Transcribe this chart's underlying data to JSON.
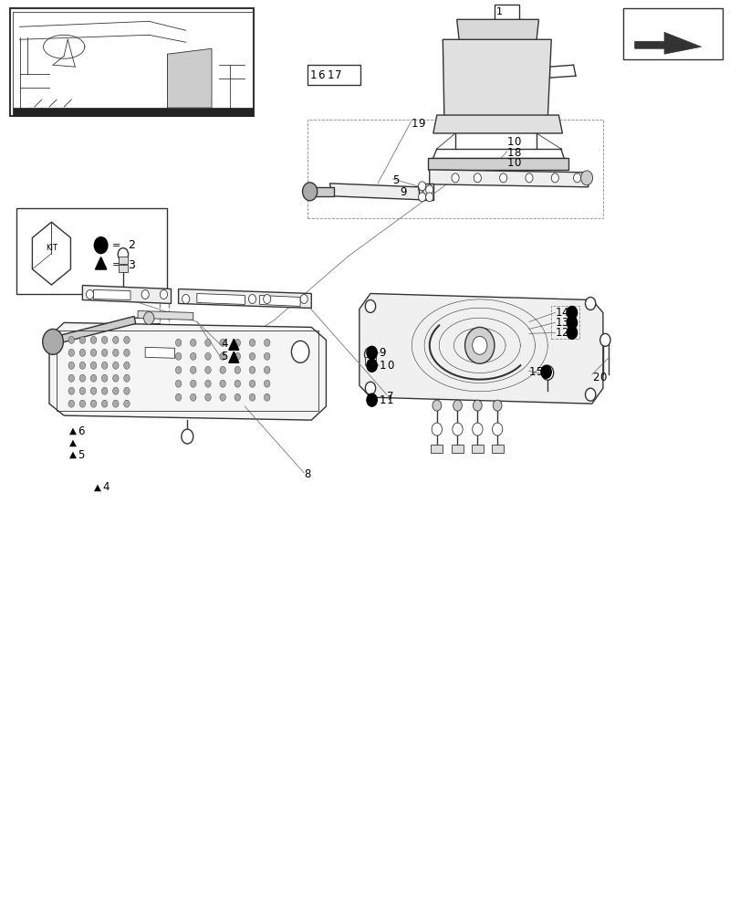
{
  "bg_color": "#ffffff",
  "line_color": "#333333",
  "figsize": [
    8.12,
    10.0
  ],
  "dpi": 100
}
